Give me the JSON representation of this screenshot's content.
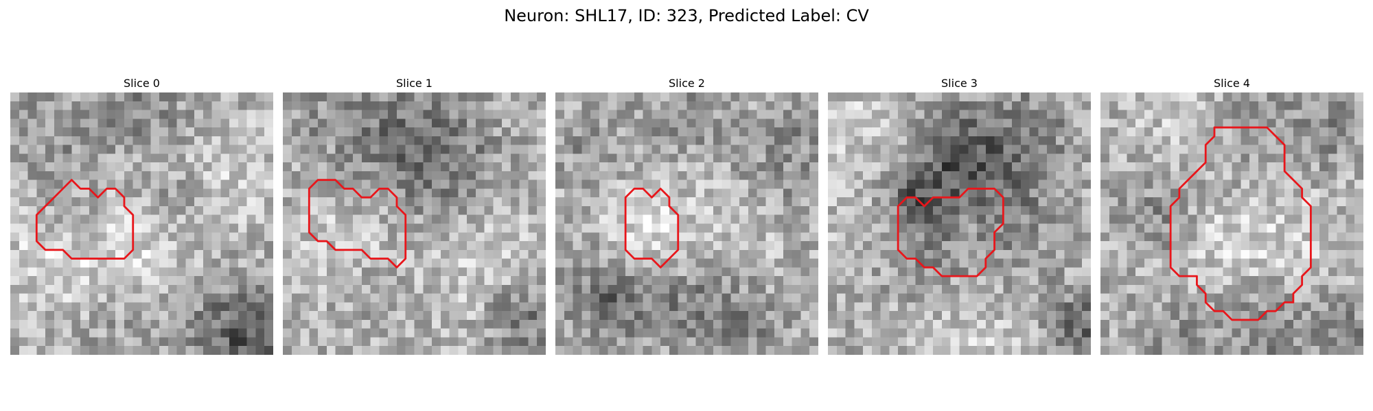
{
  "figure": {
    "title": "Neuron: SHL17, ID: 323, Predicted Label: CV"
  },
  "contour_color": "#e8161b",
  "panels": [
    {
      "title": "Slice 0",
      "seed": 11,
      "dark_blobs": [
        [
          15,
          3,
          4.0,
          60
        ],
        [
          18,
          11,
          3.5,
          40
        ],
        [
          4,
          5,
          4.0,
          30
        ],
        [
          24,
          25,
          4.0,
          40
        ],
        [
          27,
          29,
          3.5,
          70
        ],
        [
          12,
          26,
          4.0,
          25
        ],
        [
          7,
          14,
          3.0,
          30
        ]
      ],
      "light_blobs": [
        [
          16,
          6,
          4.0,
          40
        ],
        [
          4,
          18,
          5.0,
          35
        ],
        [
          14,
          18,
          5.0,
          40
        ],
        [
          24,
          10,
          4.0,
          30
        ]
      ],
      "contour": [
        [
          7,
          10
        ],
        [
          8,
          11
        ],
        [
          9,
          11
        ],
        [
          10,
          12
        ],
        [
          11,
          11
        ],
        [
          12,
          11
        ],
        [
          13,
          12
        ],
        [
          13,
          13
        ],
        [
          14,
          14
        ],
        [
          14,
          18
        ],
        [
          13,
          19
        ],
        [
          7,
          19
        ],
        [
          6,
          18
        ],
        [
          4,
          18
        ],
        [
          3,
          17
        ],
        [
          3,
          14
        ],
        [
          4,
          13
        ],
        [
          5,
          12
        ],
        [
          6,
          11
        ]
      ]
    },
    {
      "title": "Slice 1",
      "seed": 23,
      "dark_blobs": [
        [
          15,
          7,
          6.0,
          75
        ],
        [
          13,
          6,
          3.0,
          30
        ],
        [
          27,
          25,
          3.0,
          60
        ],
        [
          9,
          21,
          3.5,
          25
        ],
        [
          3,
          2,
          3.0,
          25
        ]
      ],
      "light_blobs": [
        [
          14,
          7,
          3.0,
          30
        ],
        [
          8,
          16,
          5.0,
          40
        ],
        [
          22,
          18,
          5.0,
          35
        ]
      ],
      "contour": [
        [
          4,
          10
        ],
        [
          5,
          10
        ],
        [
          6,
          10
        ],
        [
          7,
          11
        ],
        [
          8,
          11
        ],
        [
          9,
          12
        ],
        [
          10,
          12
        ],
        [
          11,
          11
        ],
        [
          12,
          11
        ],
        [
          13,
          12
        ],
        [
          13,
          13
        ],
        [
          14,
          14
        ],
        [
          14,
          19
        ],
        [
          13,
          20
        ],
        [
          12,
          19
        ],
        [
          10,
          19
        ],
        [
          9,
          18
        ],
        [
          6,
          18
        ],
        [
          5,
          17
        ],
        [
          4,
          17
        ],
        [
          3,
          16
        ],
        [
          3,
          11
        ]
      ]
    },
    {
      "title": "Slice 2",
      "seed": 37,
      "dark_blobs": [
        [
          6,
          23,
          3.5,
          75
        ],
        [
          15,
          24,
          3.0,
          45
        ],
        [
          21,
          26,
          3.0,
          50
        ],
        [
          3,
          5,
          3.0,
          30
        ],
        [
          14,
          2,
          3.5,
          30
        ],
        [
          25,
          9,
          4.0,
          30
        ],
        [
          27,
          3,
          3.0,
          25
        ]
      ],
      "light_blobs": [
        [
          10,
          15,
          3.5,
          45
        ],
        [
          20,
          14,
          4.0,
          25
        ]
      ],
      "contour": [
        [
          9,
          11
        ],
        [
          10,
          11
        ],
        [
          11,
          12
        ],
        [
          12,
          11
        ],
        [
          13,
          12
        ],
        [
          13,
          13
        ],
        [
          14,
          14
        ],
        [
          14,
          18
        ],
        [
          13,
          19
        ],
        [
          12,
          20
        ],
        [
          11,
          19
        ],
        [
          9,
          19
        ],
        [
          8,
          18
        ],
        [
          8,
          12
        ]
      ]
    },
    {
      "title": "Slice 3",
      "seed": 53,
      "dark_blobs": [
        [
          13,
          6,
          4.0,
          50
        ],
        [
          16,
          9,
          4.0,
          55
        ],
        [
          22,
          4,
          4.0,
          45
        ],
        [
          10,
          17,
          4.5,
          45
        ],
        [
          20,
          15,
          4.5,
          40
        ],
        [
          9,
          12,
          2.5,
          60
        ],
        [
          28,
          26,
          2.5,
          80
        ]
      ],
      "light_blobs": [
        [
          16,
          14,
          3.0,
          35
        ],
        [
          4,
          3,
          4.0,
          30
        ],
        [
          5,
          15,
          4.0,
          30
        ],
        [
          16,
          27,
          5.0,
          25
        ]
      ],
      "contour": [
        [
          9,
          12
        ],
        [
          10,
          12
        ],
        [
          11,
          13
        ],
        [
          12,
          12
        ],
        [
          15,
          12
        ],
        [
          16,
          11
        ],
        [
          19,
          11
        ],
        [
          20,
          12
        ],
        [
          20,
          15
        ],
        [
          19,
          16
        ],
        [
          19,
          18
        ],
        [
          18,
          19
        ],
        [
          18,
          20
        ],
        [
          17,
          21
        ],
        [
          13,
          21
        ],
        [
          12,
          20
        ],
        [
          11,
          20
        ],
        [
          10,
          19
        ],
        [
          9,
          19
        ],
        [
          8,
          18
        ],
        [
          8,
          13
        ]
      ]
    },
    {
      "title": "Slice 4",
      "seed": 71,
      "dark_blobs": [
        [
          16,
          5,
          5.0,
          40
        ],
        [
          6,
          14,
          3.0,
          40
        ],
        [
          18,
          26,
          4.0,
          50
        ],
        [
          8,
          27,
          3.0,
          30
        ],
        [
          28,
          27,
          3.0,
          40
        ],
        [
          26,
          4,
          3.0,
          35
        ]
      ],
      "light_blobs": [
        [
          17,
          16,
          6.0,
          40
        ],
        [
          10,
          3,
          4.0,
          35
        ]
      ],
      "contour": [
        [
          13,
          4
        ],
        [
          19,
          4
        ],
        [
          20,
          5
        ],
        [
          21,
          6
        ],
        [
          21,
          9
        ],
        [
          22,
          10
        ],
        [
          23,
          11
        ],
        [
          23,
          12
        ],
        [
          24,
          13
        ],
        [
          24,
          20
        ],
        [
          23,
          21
        ],
        [
          23,
          22
        ],
        [
          22,
          23
        ],
        [
          22,
          24
        ],
        [
          21,
          24
        ],
        [
          20,
          25
        ],
        [
          19,
          25
        ],
        [
          18,
          26
        ],
        [
          15,
          26
        ],
        [
          14,
          25
        ],
        [
          13,
          25
        ],
        [
          12,
          24
        ],
        [
          12,
          23
        ],
        [
          11,
          22
        ],
        [
          11,
          21
        ],
        [
          9,
          21
        ],
        [
          8,
          20
        ],
        [
          8,
          13
        ],
        [
          9,
          12
        ],
        [
          9,
          11
        ],
        [
          10,
          10
        ],
        [
          11,
          9
        ],
        [
          12,
          8
        ],
        [
          12,
          6
        ],
        [
          13,
          5
        ]
      ]
    }
  ]
}
